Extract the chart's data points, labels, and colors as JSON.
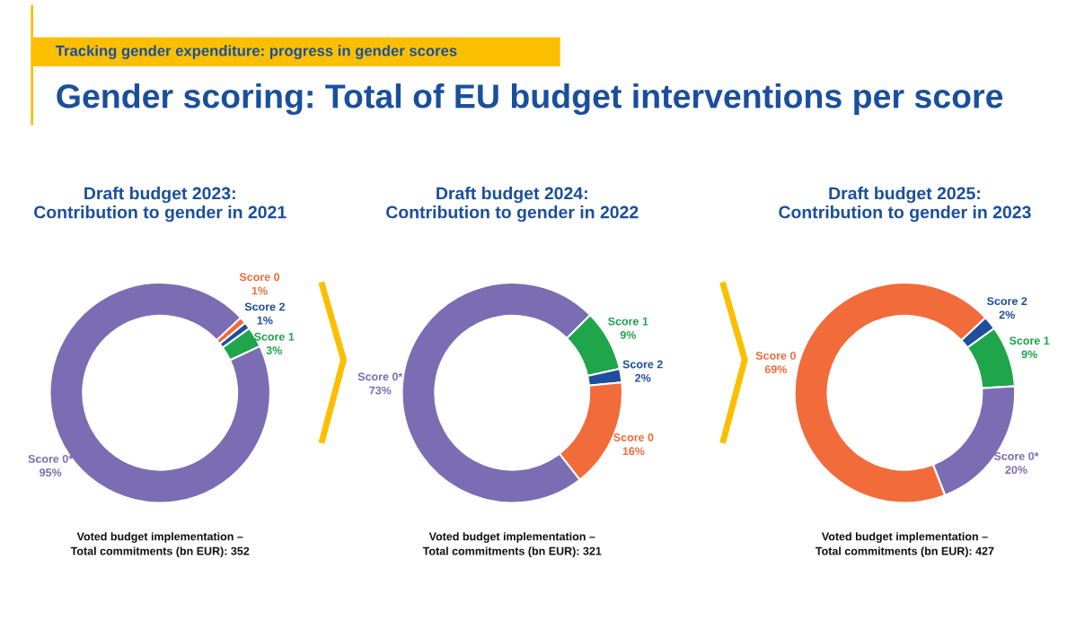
{
  "chart_data": [
    {
      "type": "donut",
      "title": "Draft budget 2023:\nContribution to gender in 2021",
      "categories": [
        "Score 0",
        "Score 2",
        "Score 1",
        "Score 0*"
      ],
      "values": [
        1,
        1,
        3,
        95
      ],
      "value_labels": [
        "1%",
        "1%",
        "3%",
        "95%"
      ],
      "colors": [
        "#f26b3a",
        "#1f4e9c",
        "#1fa54a",
        "#7b6db3"
      ],
      "annotations": [
        "Tracking gender expenditure: progress in gender scores",
        "Gender scoring: Total of EU budget interventions per score",
        "Voted budget implementation –\nTotal commitments (bn EUR): 352"
      ]
    },
    {
      "type": "donut",
      "title": "Draft budget 2024:\nContribution to gender in 2022",
      "categories": [
        "Score 1",
        "Score 2",
        "Score 0",
        "Score 0*"
      ],
      "values": [
        9,
        2,
        16,
        73
      ],
      "value_labels": [
        "9%",
        "2%",
        "16%",
        "73%"
      ],
      "colors": [
        "#1fa54a",
        "#1f4e9c",
        "#f26b3a",
        "#7b6db3"
      ],
      "annotations": [
        "Voted budget implementation –\nTotal commitments (bn EUR): 321"
      ]
    },
    {
      "type": "donut",
      "title": "Draft budget 2025:\nContribution to gender in 2023",
      "categories": [
        "Score 2",
        "Score 1",
        "Score 0*",
        "Score 0"
      ],
      "values": [
        2,
        9,
        20,
        69
      ],
      "value_labels": [
        "2%",
        "9%",
        "20%",
        "69%"
      ],
      "colors": [
        "#1f4e9c",
        "#1fa54a",
        "#7b6db3",
        "#f26b3a"
      ],
      "annotations": [
        "Voted budget implementation –\nTotal commitments (bn EUR): 427"
      ]
    }
  ]
}
